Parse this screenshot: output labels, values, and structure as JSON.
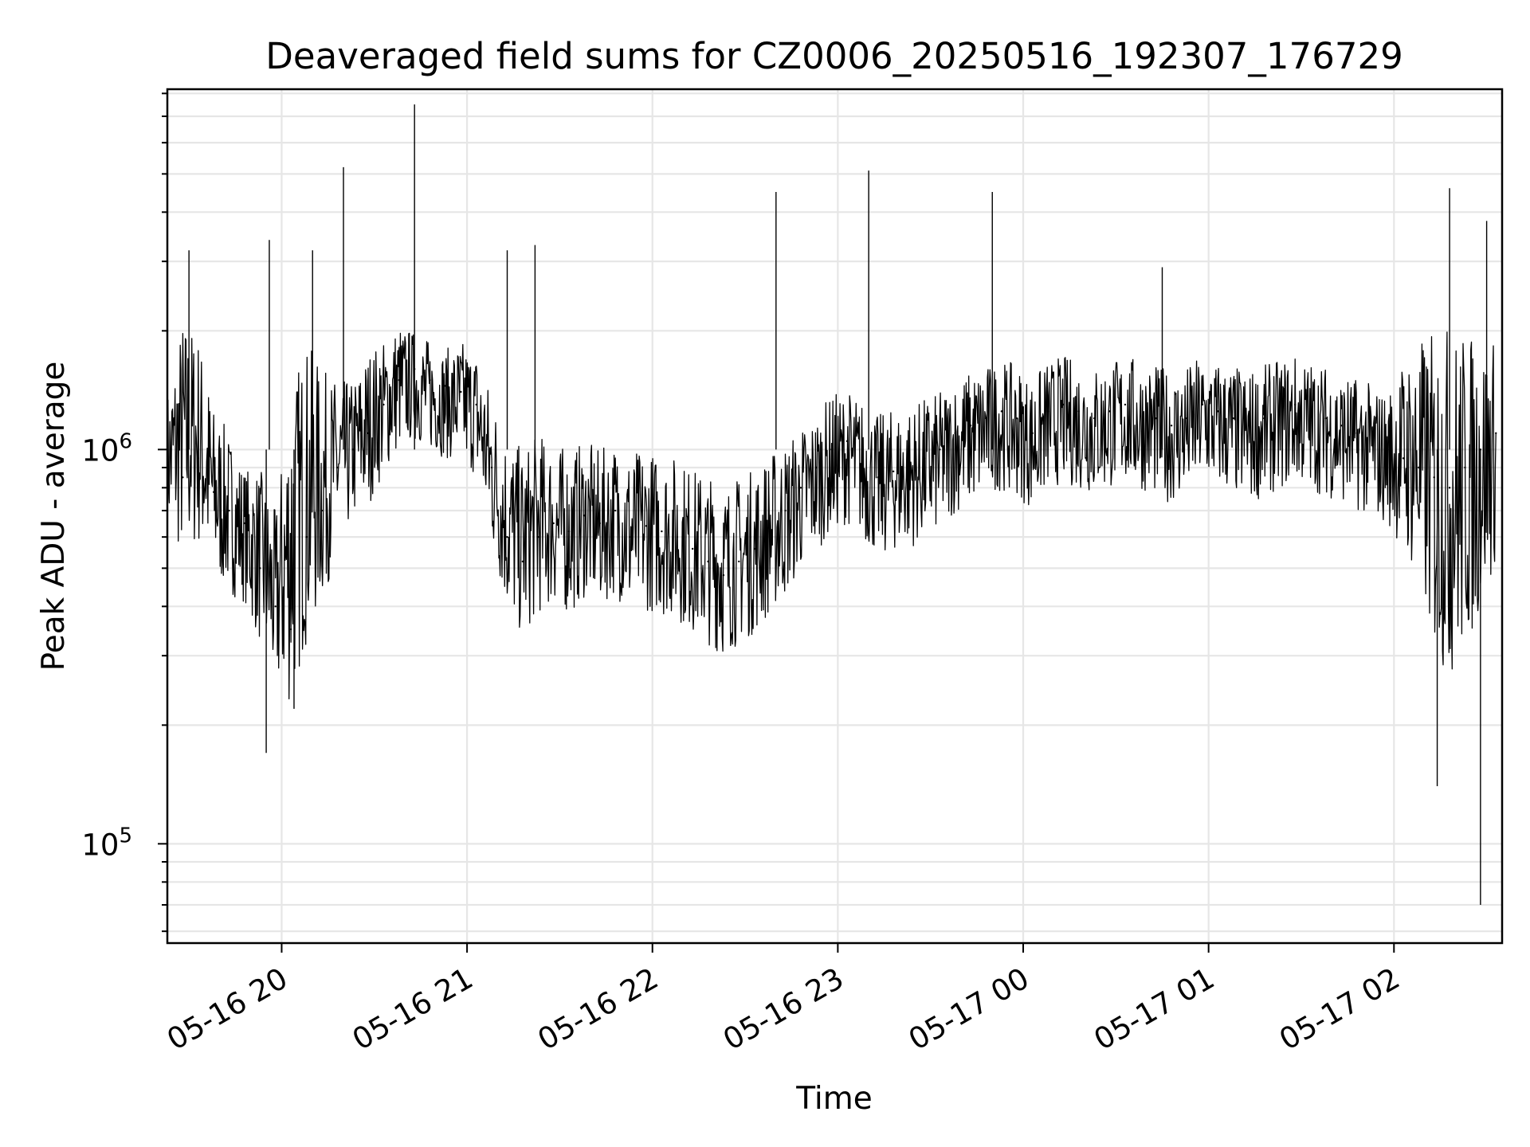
{
  "chart_data": {
    "type": "line",
    "title": "Deaveraged field sums for CZ0006_20250516_192307_176729",
    "xlabel": "Time",
    "ylabel": "Peak ADU - average",
    "x_scale": "time",
    "y_scale": "log",
    "xlim": [
      "2025-05-16 19:23",
      "2025-05-17 02:35"
    ],
    "ylim": [
      56000,
      8200000
    ],
    "x_ticks": [
      {
        "t": "2025-05-16 20:00",
        "label": "05-16 20"
      },
      {
        "t": "2025-05-16 21:00",
        "label": "05-16 21"
      },
      {
        "t": "2025-05-16 22:00",
        "label": "05-16 22"
      },
      {
        "t": "2025-05-16 23:00",
        "label": "05-16 23"
      },
      {
        "t": "2025-05-17 00:00",
        "label": "05-17 00"
      },
      {
        "t": "2025-05-17 01:00",
        "label": "05-17 01"
      },
      {
        "t": "2025-05-17 02:00",
        "label": "05-17 02"
      }
    ],
    "y_ticks": [
      {
        "value": 100000,
        "base": "10",
        "exp": "5"
      },
      {
        "value": 1000000,
        "base": "10",
        "exp": "6"
      }
    ],
    "grid": true,
    "legend": "none",
    "line_color": "#000000",
    "series": [
      {
        "x": [
          "2025-05-16 19:23",
          "2025-05-16 19:28",
          "2025-05-16 19:33",
          "2025-05-16 19:38",
          "2025-05-16 19:43",
          "2025-05-16 19:48",
          "2025-05-16 19:53",
          "2025-05-16 19:58",
          "2025-05-16 20:03",
          "2025-05-16 20:08",
          "2025-05-16 20:13",
          "2025-05-16 20:18",
          "2025-05-16 20:23",
          "2025-05-16 20:28",
          "2025-05-16 20:33",
          "2025-05-16 20:38",
          "2025-05-16 20:43",
          "2025-05-16 20:48",
          "2025-05-16 20:53",
          "2025-05-16 20:58",
          "2025-05-16 21:03",
          "2025-05-16 21:08",
          "2025-05-16 21:13",
          "2025-05-16 21:18",
          "2025-05-16 21:23",
          "2025-05-16 21:28",
          "2025-05-16 21:33",
          "2025-05-16 21:38",
          "2025-05-16 21:43",
          "2025-05-16 21:48",
          "2025-05-16 21:53",
          "2025-05-16 21:58",
          "2025-05-16 22:03",
          "2025-05-16 22:08",
          "2025-05-16 22:13",
          "2025-05-16 22:18",
          "2025-05-16 22:23",
          "2025-05-16 22:28",
          "2025-05-16 22:33",
          "2025-05-16 22:38",
          "2025-05-16 22:43",
          "2025-05-16 22:48",
          "2025-05-16 22:53",
          "2025-05-16 22:58",
          "2025-05-16 23:03",
          "2025-05-16 23:08",
          "2025-05-16 23:13",
          "2025-05-16 23:18",
          "2025-05-16 23:23",
          "2025-05-16 23:28",
          "2025-05-16 23:33",
          "2025-05-16 23:38",
          "2025-05-16 23:43",
          "2025-05-16 23:48",
          "2025-05-16 23:53",
          "2025-05-16 23:58",
          "2025-05-17 00:03",
          "2025-05-17 00:08",
          "2025-05-17 00:13",
          "2025-05-17 00:18",
          "2025-05-17 00:23",
          "2025-05-17 00:28",
          "2025-05-17 00:33",
          "2025-05-17 00:38",
          "2025-05-17 00:43",
          "2025-05-17 00:48",
          "2025-05-17 00:53",
          "2025-05-17 00:58",
          "2025-05-17 01:03",
          "2025-05-17 01:08",
          "2025-05-17 01:13",
          "2025-05-17 01:18",
          "2025-05-17 01:23",
          "2025-05-17 01:28",
          "2025-05-17 01:33",
          "2025-05-17 01:38",
          "2025-05-17 01:43",
          "2025-05-17 01:48",
          "2025-05-17 01:53",
          "2025-05-17 01:58",
          "2025-05-17 02:03",
          "2025-05-17 02:08",
          "2025-05-17 02:13",
          "2025-05-17 02:18",
          "2025-05-17 02:23",
          "2025-05-17 02:28",
          "2025-05-17 02:33"
        ],
        "y": [
          1000000,
          850000,
          950000,
          780000,
          700000,
          650000,
          500000,
          400000,
          350000,
          600000,
          700000,
          900000,
          1000000,
          1100000,
          1300000,
          1500000,
          1600000,
          1500000,
          1450000,
          1400000,
          1300000,
          900000,
          600000,
          520000,
          600000,
          650000,
          620000,
          680000,
          650000,
          700000,
          600000,
          640000,
          620000,
          600000,
          560000,
          520000,
          480000,
          520000,
          560000,
          620000,
          700000,
          800000,
          900000,
          1000000,
          1050000,
          950000,
          850000,
          880000,
          900000,
          950000,
          1000000,
          1100000,
          1150000,
          1200000,
          1250000,
          1200000,
          1100000,
          1250000,
          1300000,
          1250000,
          1200000,
          1250000,
          1300000,
          1250000,
          1200000,
          1150000,
          1200000,
          1300000,
          1250000,
          1200000,
          1150000,
          1200000,
          1250000,
          1300000,
          1250000,
          1200000,
          1150000,
          1100000,
          1050000,
          1000000,
          950000,
          900000,
          850000,
          800000,
          900000,
          1000000,
          1100000
        ],
        "envelope": {
          "upper": [
            1400000,
            2200000,
            2000000,
            1300000,
            1100000,
            900000,
            900000,
            700000,
            1500000,
            1900000,
            1600000,
            1500000,
            1500000,
            1800000,
            1900000,
            2100000,
            2000000,
            1900000,
            1800000,
            1900000,
            1800000,
            1400000,
            1100000,
            1000000,
            1100000,
            1050000,
            1000000,
            1050000,
            1000000,
            1050000,
            1000000,
            1000000,
            980000,
            960000,
            900000,
            870000,
            820000,
            860000,
            900000,
            980000,
            1050000,
            1150000,
            1250000,
            1380000,
            1430000,
            1330000,
            1230000,
            1270000,
            1300000,
            1350000,
            1400000,
            1520000,
            1590000,
            1640000,
            1690000,
            1640000,
            1520000,
            1690000,
            1740000,
            1690000,
            1640000,
            1690000,
            1740000,
            1690000,
            1640000,
            1590000,
            1640000,
            1740000,
            1690000,
            1640000,
            1590000,
            1640000,
            1690000,
            1740000,
            1690000,
            1640000,
            1590000,
            1520000,
            1470000,
            1410000,
            1700000,
            1900000,
            2000000,
            2100000,
            2000000,
            1950000,
            1900000
          ],
          "lower": [
            620000,
            520000,
            560000,
            470000,
            430000,
            410000,
            320000,
            240000,
            220000,
            320000,
            400000,
            560000,
            650000,
            720000,
            860000,
            1000000,
            1050000,
            990000,
            950000,
            920000,
            850000,
            560000,
            380000,
            330000,
            380000,
            400000,
            380000,
            420000,
            400000,
            430000,
            370000,
            390000,
            380000,
            370000,
            340000,
            320000,
            300000,
            320000,
            340000,
            380000,
            420000,
            490000,
            550000,
            620000,
            650000,
            590000,
            530000,
            550000,
            560000,
            590000,
            620000,
            690000,
            720000,
            760000,
            790000,
            760000,
            700000,
            790000,
            820000,
            790000,
            760000,
            790000,
            820000,
            790000,
            760000,
            730000,
            760000,
            820000,
            790000,
            760000,
            730000,
            760000,
            790000,
            820000,
            790000,
            760000,
            730000,
            700000,
            670000,
            640000,
            560000,
            440000,
            300000,
            260000,
            300000,
            380000,
            520000
          ]
        },
        "spikes": [
          {
            "t": "2025-05-16 19:30",
            "value": 3200000
          },
          {
            "t": "2025-05-16 19:55",
            "value": 170000
          },
          {
            "t": "2025-05-16 19:56",
            "value": 3400000
          },
          {
            "t": "2025-05-16 20:04",
            "value": 220000
          },
          {
            "t": "2025-05-16 20:10",
            "value": 3200000
          },
          {
            "t": "2025-05-16 20:20",
            "value": 5200000
          },
          {
            "t": "2025-05-16 20:43",
            "value": 7500000
          },
          {
            "t": "2025-05-16 21:13",
            "value": 3200000
          },
          {
            "t": "2025-05-16 21:22",
            "value": 3300000
          },
          {
            "t": "2025-05-16 22:40",
            "value": 4500000
          },
          {
            "t": "2025-05-16 23:10",
            "value": 5100000
          },
          {
            "t": "2025-05-16 23:50",
            "value": 4500000
          },
          {
            "t": "2025-05-17 00:45",
            "value": 2900000
          },
          {
            "t": "2025-05-17 02:14",
            "value": 140000
          },
          {
            "t": "2025-05-17 02:18",
            "value": 4600000
          },
          {
            "t": "2025-05-17 02:28",
            "value": 70000
          },
          {
            "t": "2025-05-17 02:30",
            "value": 3800000
          }
        ]
      }
    ]
  }
}
